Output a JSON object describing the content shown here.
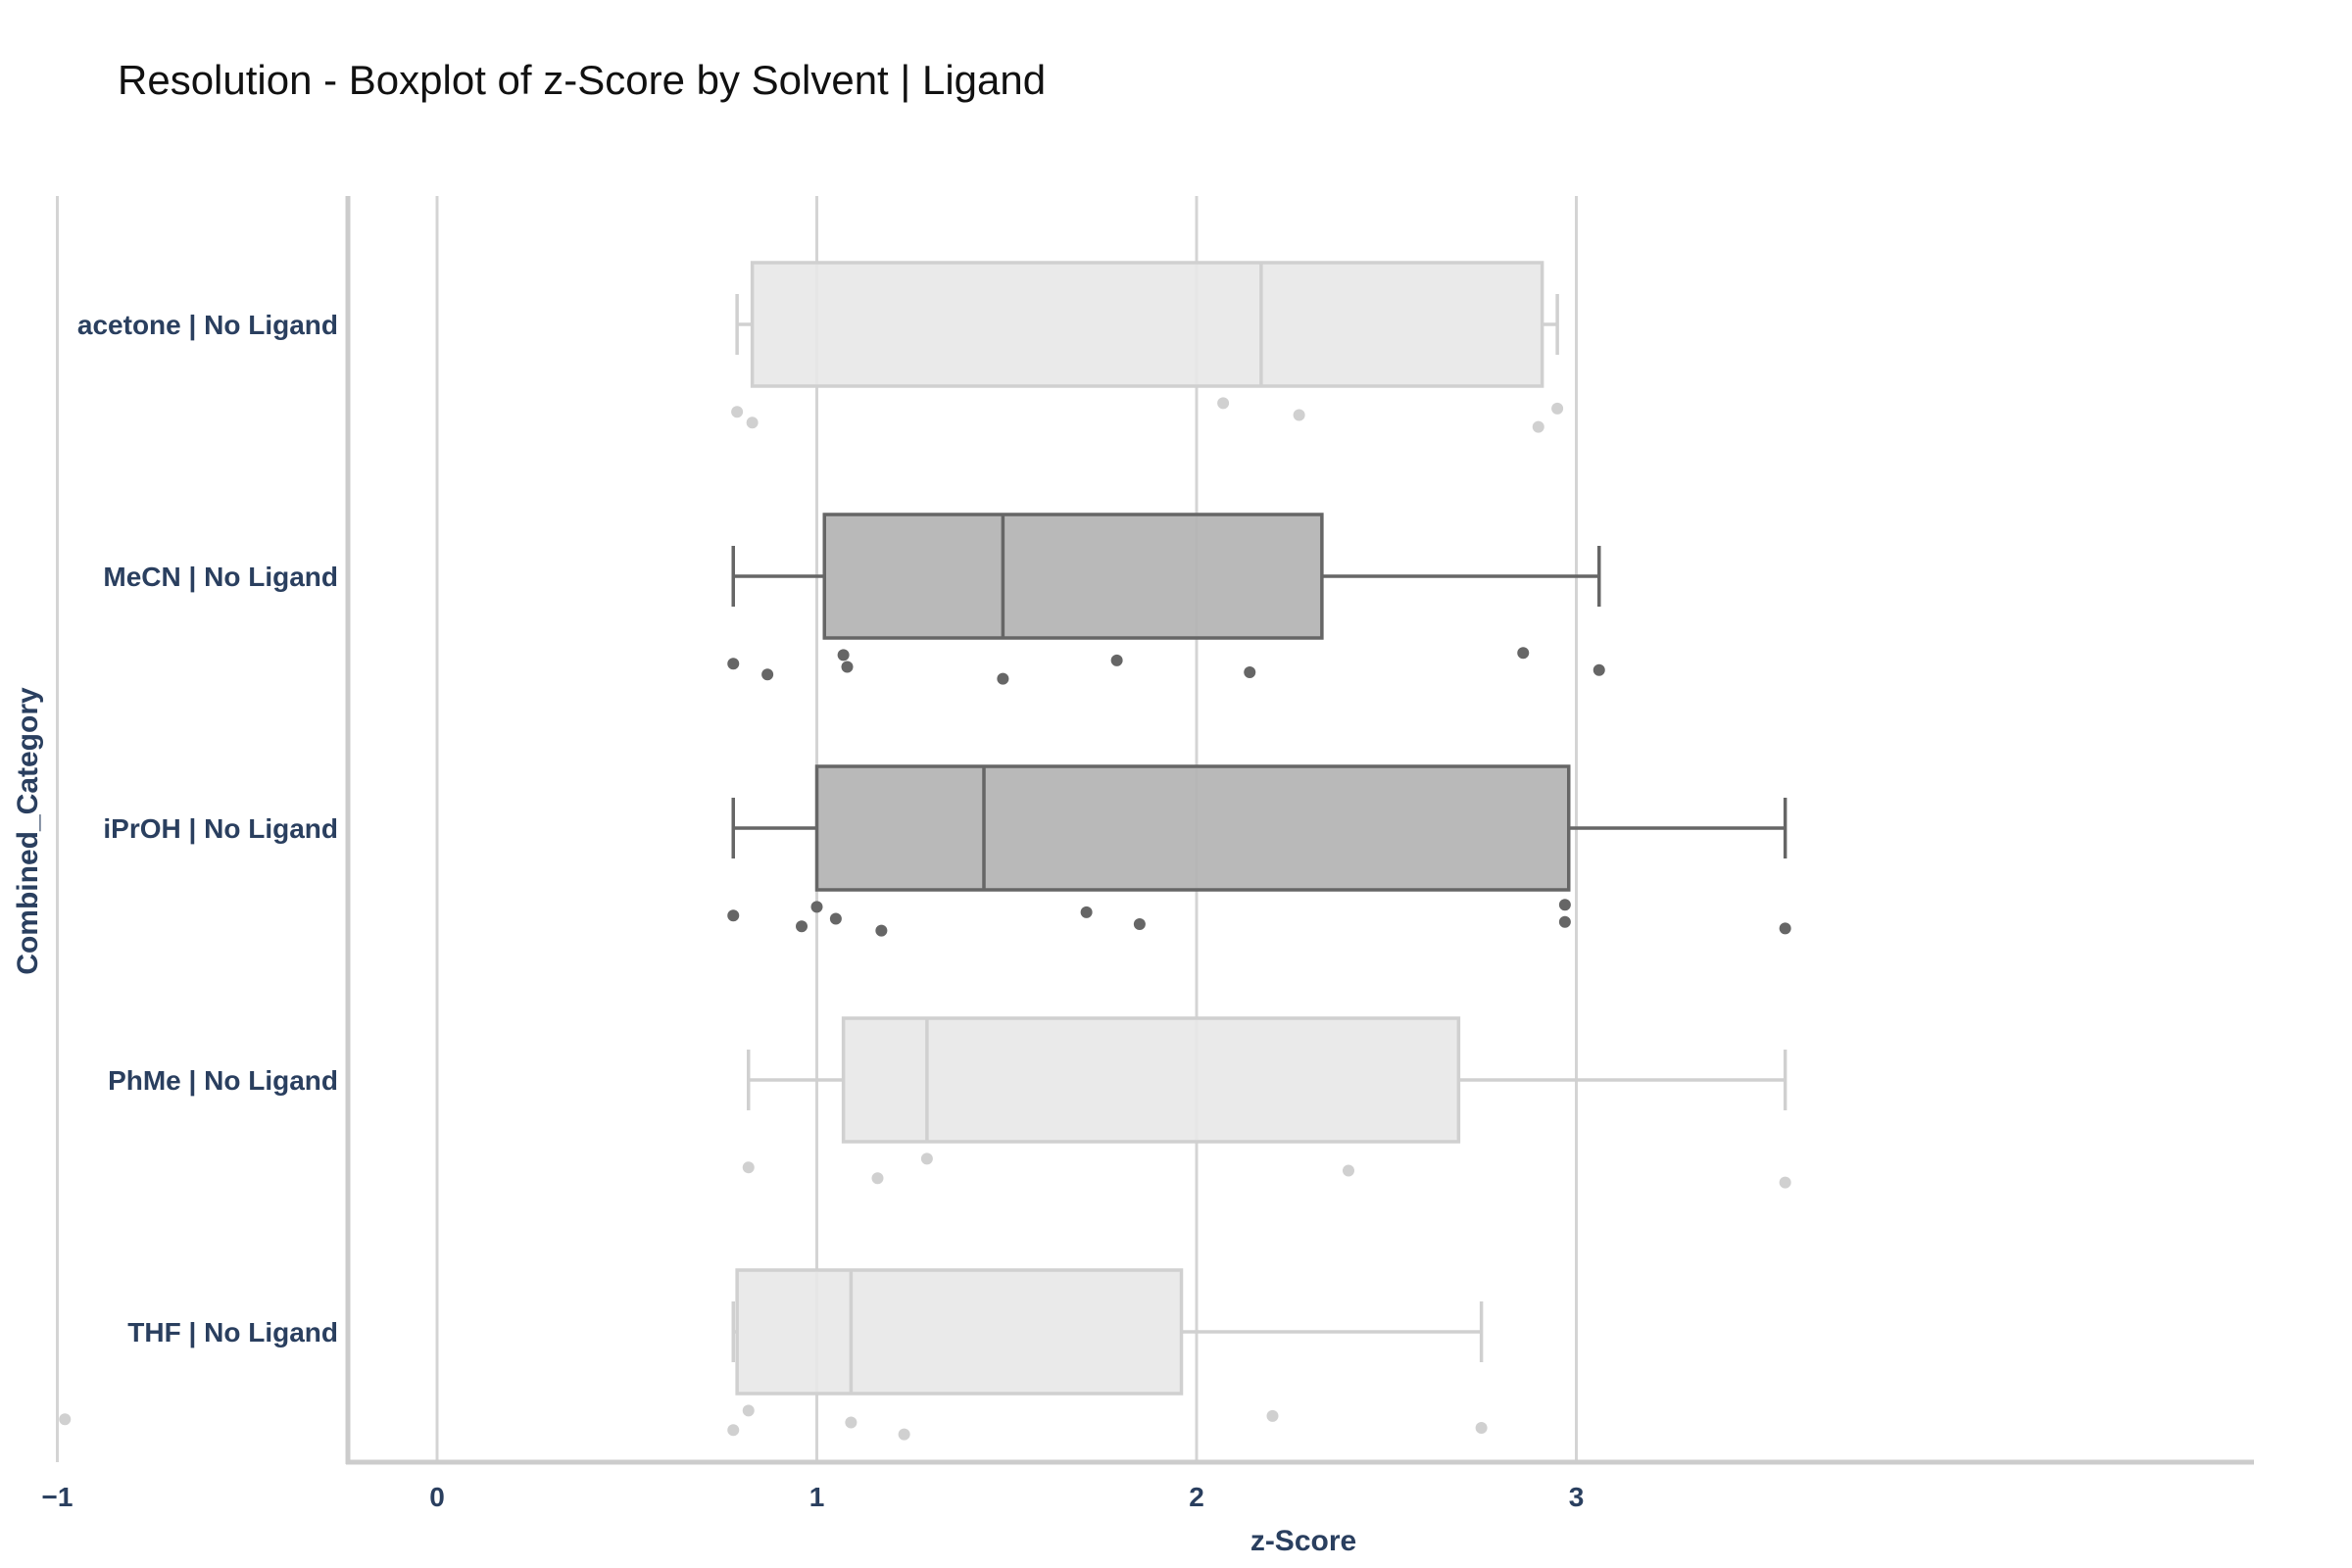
{
  "chart_data": {
    "type": "box",
    "orientation": "horizontal",
    "title": "Resolution - Boxplot of z-Score by Solvent | Ligand",
    "xlabel": "z-Score",
    "ylabel": "Combined_Category",
    "xlim": [
      -1.24,
      3.78
    ],
    "xticks": [
      -1,
      0,
      1,
      2,
      3
    ],
    "xtick_labels": [
      "−1",
      "0",
      "1",
      "2",
      "3"
    ],
    "grid": "vertical",
    "categories": [
      "acetone | No Ligand",
      "MeCN | No Ligand",
      "iPrOH | No Ligand",
      "PhMe | No Ligand",
      "THF | No Ligand"
    ],
    "boxes": [
      {
        "category": "acetone | No Ligand",
        "whisker_low": 0.79,
        "q1": 0.83,
        "median": 2.17,
        "q3": 2.91,
        "whisker_high": 2.95,
        "highlighted": false,
        "points": [
          0.79,
          0.83,
          2.07,
          2.27,
          2.9,
          2.95
        ]
      },
      {
        "category": "MeCN | No Ligand",
        "whisker_low": 0.78,
        "q1": 1.02,
        "median": 1.49,
        "q3": 2.33,
        "whisker_high": 3.06,
        "highlighted": true,
        "points": [
          0.78,
          0.87,
          1.07,
          1.08,
          1.49,
          1.79,
          2.14,
          2.86,
          3.06
        ]
      },
      {
        "category": "iPrOH | No Ligand",
        "whisker_low": 0.78,
        "q1": 1.0,
        "median": 1.44,
        "q3": 2.98,
        "whisker_high": 3.55,
        "highlighted": true,
        "points": [
          0.78,
          0.96,
          1.0,
          1.05,
          1.17,
          1.71,
          1.85,
          2.97,
          2.97,
          3.55
        ]
      },
      {
        "category": "PhMe | No Ligand",
        "whisker_low": 0.82,
        "q1": 1.07,
        "median": 1.29,
        "q3": 2.69,
        "whisker_high": 3.55,
        "highlighted": false,
        "points": [
          0.82,
          1.16,
          1.29,
          2.4,
          3.55
        ]
      },
      {
        "category": "THF | No Ligand",
        "whisker_low": 0.78,
        "q1": 0.79,
        "median": 1.09,
        "q3": 1.96,
        "whisker_high": 2.75,
        "highlighted": false,
        "points": [
          -0.98,
          0.78,
          0.82,
          1.09,
          1.23,
          2.2,
          2.75
        ]
      }
    ],
    "colors": {
      "highlight_fill": "#b3b3b3",
      "highlight_line": "#666666",
      "muted_fill": "#e8e8e8",
      "muted_line": "#d0d0d0",
      "axis_text": "#2a3f5f",
      "grid": "#d4d4d4",
      "axis_line": "#cccccc"
    }
  }
}
